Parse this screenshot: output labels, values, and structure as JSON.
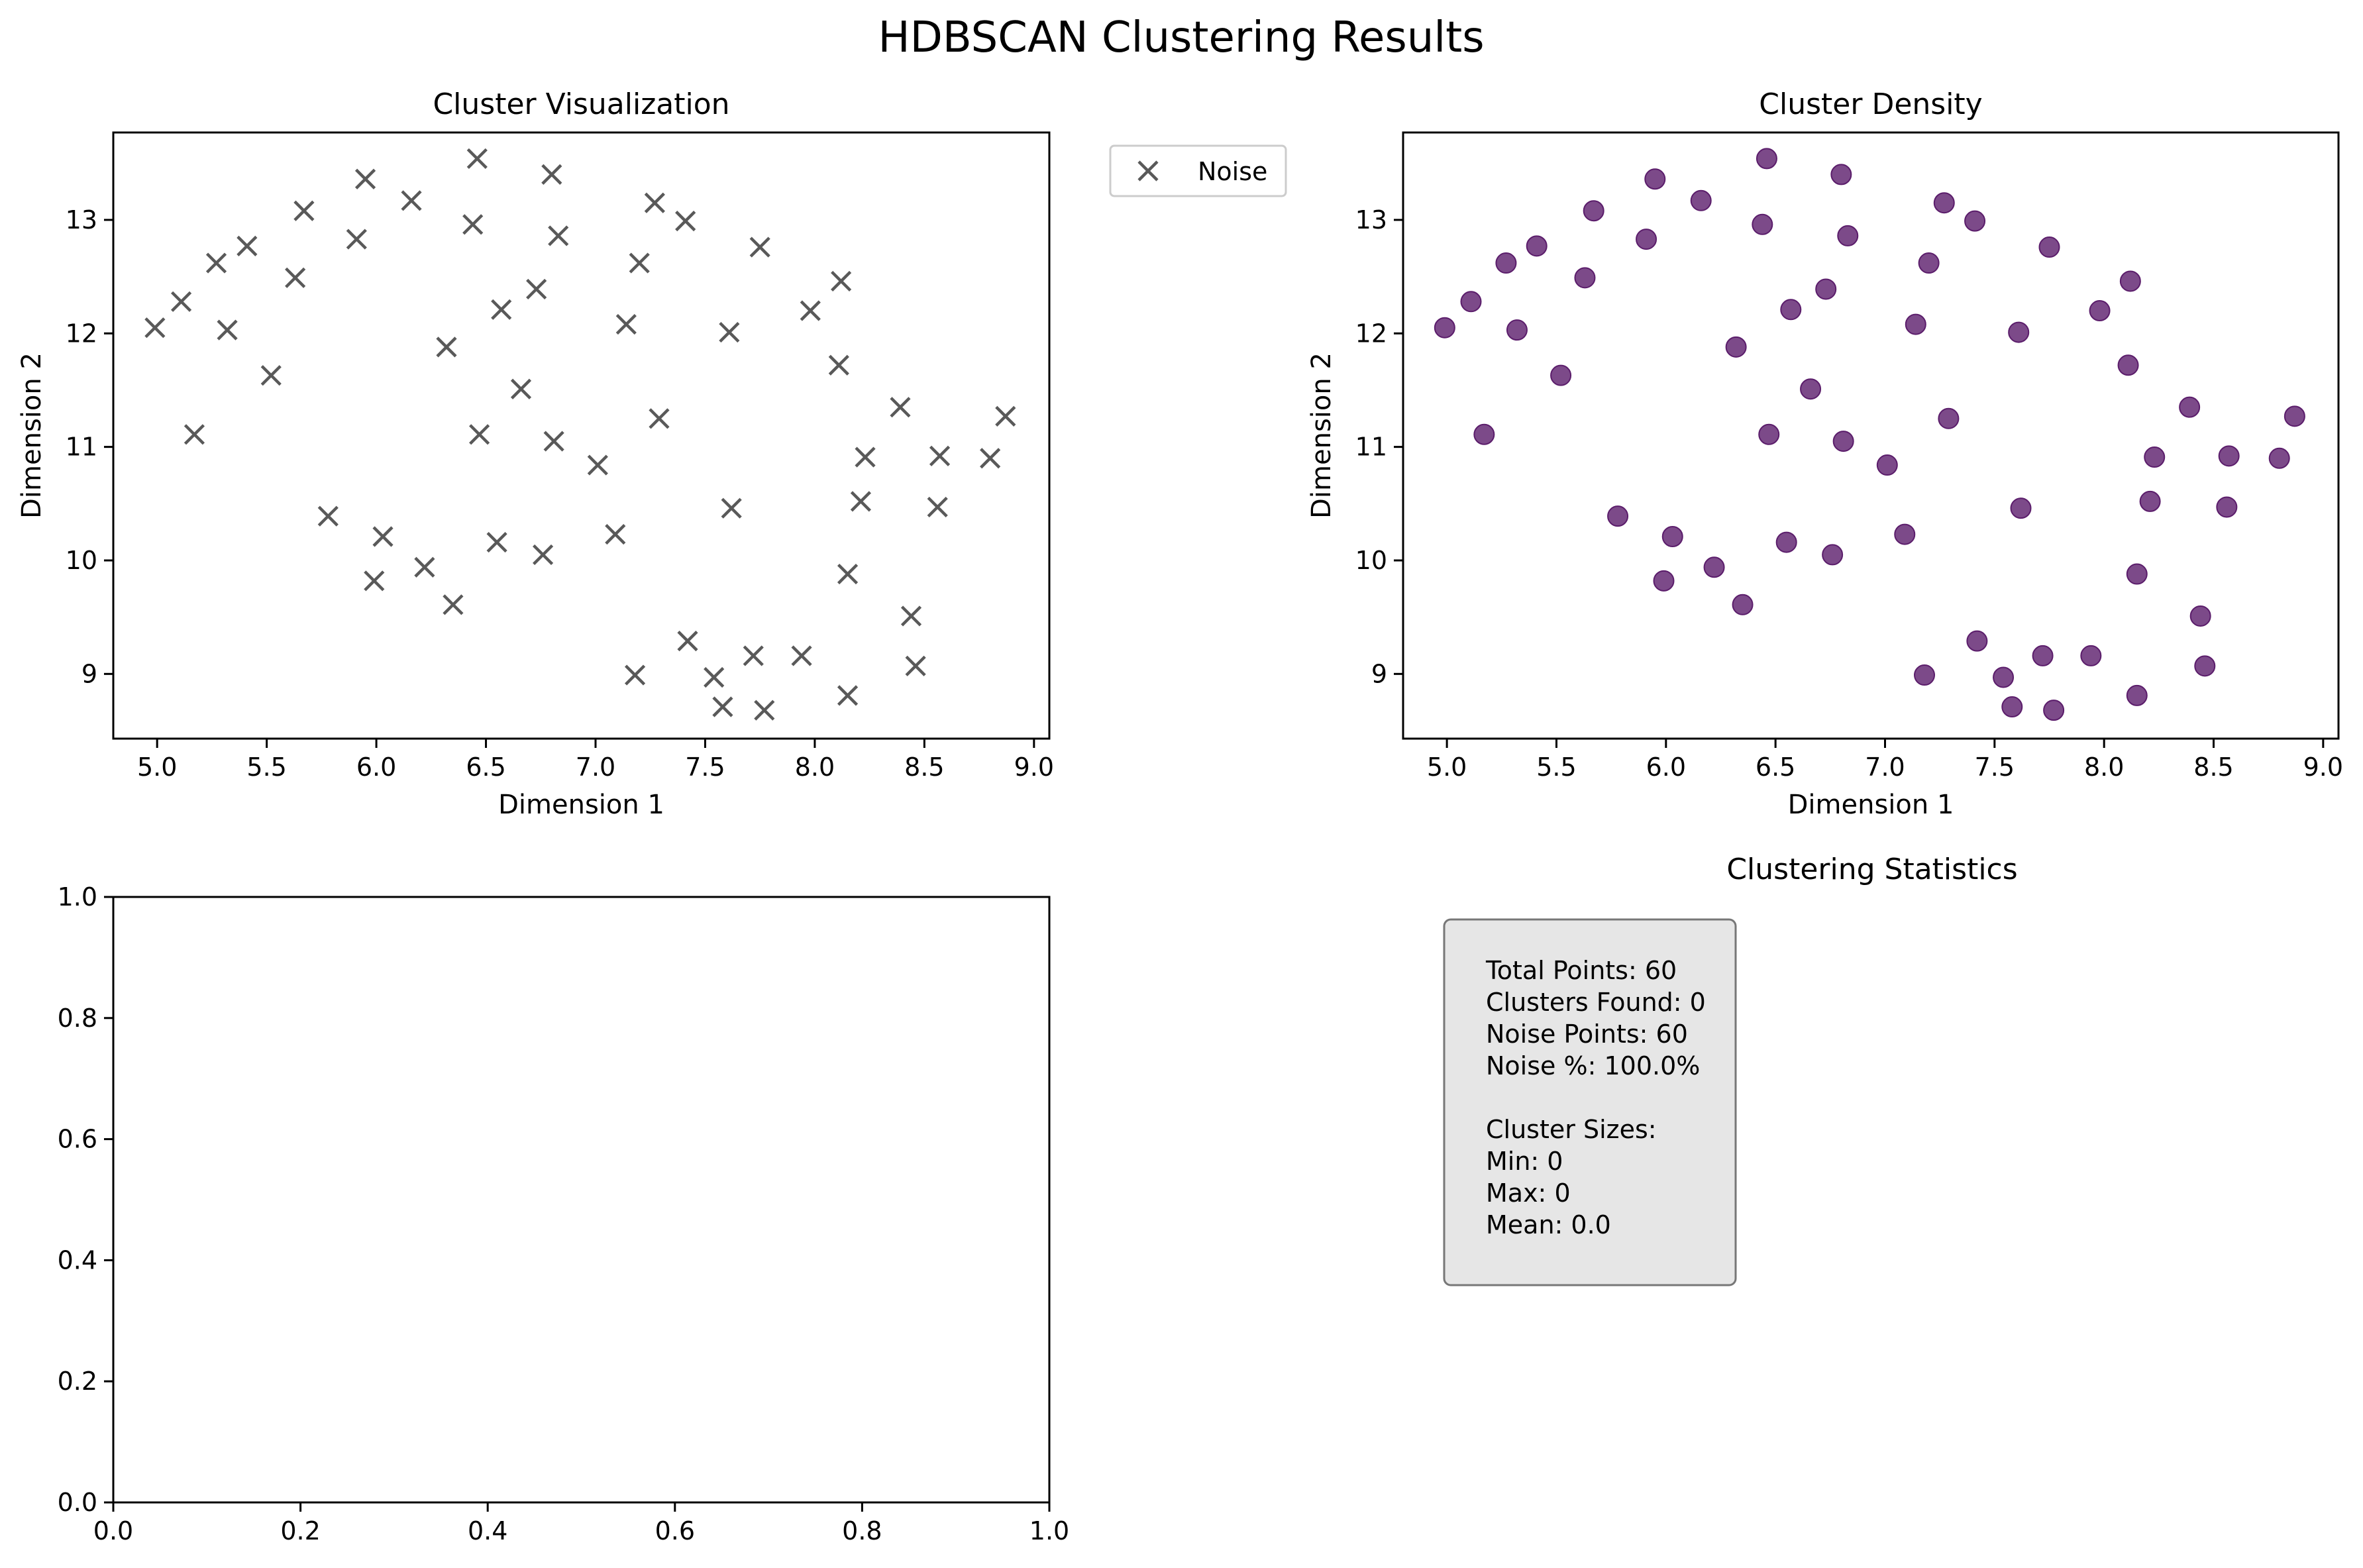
{
  "figure": {
    "title": "HDBSCAN Clustering Results"
  },
  "chart_data": [
    {
      "type": "scatter",
      "title": "Cluster Visualization",
      "xlabel": "Dimension 1",
      "ylabel": "Dimension 2",
      "xlim": [
        4.8,
        9.07
      ],
      "ylim": [
        8.43,
        13.77
      ],
      "xticks": [
        "5.0",
        "5.5",
        "6.0",
        "6.5",
        "7.0",
        "7.5",
        "8.0",
        "8.5",
        "9.0"
      ],
      "yticks": [
        "9",
        "10",
        "11",
        "12",
        "13"
      ],
      "legend": {
        "placement": "outside-right",
        "entries": [
          "Noise"
        ]
      },
      "marker": "x",
      "color": "#595959",
      "series": [
        {
          "name": "Noise",
          "points": [
            [
              4.99,
              12.05
            ],
            [
              5.11,
              12.28
            ],
            [
              5.17,
              11.11
            ],
            [
              5.27,
              12.62
            ],
            [
              5.32,
              12.03
            ],
            [
              5.41,
              12.77
            ],
            [
              5.52,
              11.63
            ],
            [
              5.63,
              12.49
            ],
            [
              5.67,
              13.08
            ],
            [
              5.78,
              10.39
            ],
            [
              5.91,
              12.83
            ],
            [
              5.95,
              13.36
            ],
            [
              5.99,
              9.82
            ],
            [
              6.03,
              10.21
            ],
            [
              6.16,
              13.17
            ],
            [
              6.22,
              9.94
            ],
            [
              6.32,
              11.88
            ],
            [
              6.35,
              9.61
            ],
            [
              6.44,
              12.96
            ],
            [
              6.46,
              13.54
            ],
            [
              6.47,
              11.11
            ],
            [
              6.55,
              10.16
            ],
            [
              6.57,
              12.21
            ],
            [
              6.66,
              11.51
            ],
            [
              6.73,
              12.39
            ],
            [
              6.76,
              10.05
            ],
            [
              6.8,
              13.4
            ],
            [
              6.81,
              11.05
            ],
            [
              6.83,
              12.86
            ],
            [
              7.01,
              10.84
            ],
            [
              7.09,
              10.23
            ],
            [
              7.14,
              12.08
            ],
            [
              7.18,
              8.99
            ],
            [
              7.2,
              12.62
            ],
            [
              7.27,
              13.15
            ],
            [
              7.29,
              11.25
            ],
            [
              7.41,
              12.99
            ],
            [
              7.42,
              9.29
            ],
            [
              7.54,
              8.97
            ],
            [
              7.58,
              8.71
            ],
            [
              7.61,
              12.01
            ],
            [
              7.62,
              10.46
            ],
            [
              7.72,
              9.16
            ],
            [
              7.75,
              12.76
            ],
            [
              7.77,
              8.68
            ],
            [
              7.94,
              9.16
            ],
            [
              7.98,
              12.2
            ],
            [
              8.11,
              11.72
            ],
            [
              8.12,
              12.46
            ],
            [
              8.15,
              8.81
            ],
            [
              8.15,
              9.88
            ],
            [
              8.21,
              10.52
            ],
            [
              8.23,
              10.91
            ],
            [
              8.39,
              11.35
            ],
            [
              8.44,
              9.51
            ],
            [
              8.46,
              9.07
            ],
            [
              8.56,
              10.47
            ],
            [
              8.57,
              10.92
            ],
            [
              8.8,
              10.9
            ],
            [
              8.87,
              11.27
            ]
          ]
        }
      ]
    },
    {
      "type": "scatter",
      "title": "Cluster Density",
      "xlabel": "Dimension 1",
      "ylabel": "Dimension 2",
      "xlim": [
        4.8,
        9.07
      ],
      "ylim": [
        8.43,
        13.77
      ],
      "xticks": [
        "5.0",
        "5.5",
        "6.0",
        "6.5",
        "7.0",
        "7.5",
        "8.0",
        "8.5",
        "9.0"
      ],
      "yticks": [
        "9",
        "10",
        "11",
        "12",
        "13"
      ],
      "marker": "circle",
      "color": "#5b1d6b",
      "points_same_as": "Cluster Visualization"
    },
    {
      "type": "scatter",
      "title": "",
      "xlabel": "",
      "ylabel": "",
      "xlim": [
        0,
        1
      ],
      "ylim": [
        0,
        1
      ],
      "xticks": [
        "0.0",
        "0.2",
        "0.4",
        "0.6",
        "0.8",
        "1.0"
      ],
      "yticks": [
        "0.0",
        "0.2",
        "0.4",
        "0.6",
        "0.8",
        "1.0"
      ],
      "points": []
    }
  ],
  "stats": {
    "title": "Clustering Statistics",
    "lines": [
      "Total Points: 60",
      "Clusters Found: 0",
      "Noise Points: 60",
      "Noise %: 100.0%",
      "",
      "Cluster Sizes:",
      "Min: 0",
      "Max: 0",
      "Mean: 0.0"
    ]
  },
  "colors": {
    "noise": "#595959",
    "density": "#5b1d6b",
    "stats_box_fill": "#e6e6e6",
    "stats_box_stroke": "#777777"
  }
}
